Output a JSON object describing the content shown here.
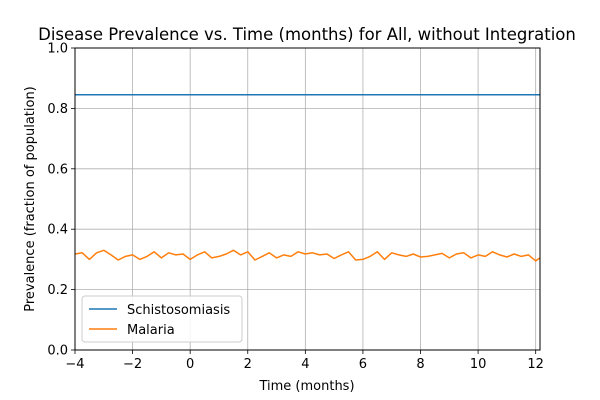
{
  "chart_data": {
    "type": "line",
    "title": "Disease Prevalence vs. Time (months) for All, without Integration",
    "xlabel": "Time (months)",
    "ylabel": "Prevalence (fraction of population)",
    "xlim": [
      -4,
      12.15
    ],
    "ylim": [
      0,
      1
    ],
    "xticks": [
      -4,
      -2,
      0,
      2,
      4,
      6,
      8,
      10,
      12
    ],
    "xtick_labels": [
      "−4",
      "−2",
      "0",
      "2",
      "4",
      "6",
      "8",
      "10",
      "12"
    ],
    "yticks": [
      0,
      0.2,
      0.4,
      0.6,
      0.8,
      1
    ],
    "ytick_labels": [
      "0.0",
      "0.2",
      "0.4",
      "0.6",
      "0.8",
      "1.0"
    ],
    "grid": true,
    "legend_position": "lower-left",
    "series": [
      {
        "name": "Schistosomiasis",
        "color": "#1f77b4",
        "x": [
          -4,
          12.15
        ],
        "y": [
          0.845,
          0.845
        ]
      },
      {
        "name": "Malaria",
        "color": "#ff7f0e",
        "x": [
          -4,
          -3.75,
          -3.5,
          -3.25,
          -3.0,
          -2.75,
          -2.5,
          -2.25,
          -2.0,
          -1.75,
          -1.5,
          -1.25,
          -1.0,
          -0.75,
          -0.5,
          -0.25,
          0.0,
          0.25,
          0.5,
          0.75,
          1.0,
          1.25,
          1.5,
          1.75,
          2.0,
          2.25,
          2.5,
          2.75,
          3.0,
          3.25,
          3.5,
          3.75,
          4.0,
          4.25,
          4.5,
          4.75,
          5.0,
          5.25,
          5.5,
          5.75,
          6.0,
          6.25,
          6.5,
          6.75,
          7.0,
          7.25,
          7.5,
          7.75,
          8.0,
          8.25,
          8.5,
          8.75,
          9.0,
          9.25,
          9.5,
          9.75,
          10.0,
          10.25,
          10.5,
          10.75,
          11.0,
          11.25,
          11.5,
          11.75,
          12.0,
          12.15
        ],
        "y": [
          0.318,
          0.322,
          0.3,
          0.322,
          0.33,
          0.315,
          0.298,
          0.31,
          0.315,
          0.3,
          0.31,
          0.325,
          0.305,
          0.322,
          0.315,
          0.318,
          0.3,
          0.315,
          0.325,
          0.305,
          0.31,
          0.318,
          0.33,
          0.315,
          0.325,
          0.298,
          0.31,
          0.322,
          0.305,
          0.315,
          0.31,
          0.325,
          0.318,
          0.322,
          0.315,
          0.318,
          0.303,
          0.315,
          0.325,
          0.298,
          0.3,
          0.31,
          0.325,
          0.3,
          0.322,
          0.315,
          0.31,
          0.318,
          0.308,
          0.31,
          0.315,
          0.32,
          0.305,
          0.318,
          0.322,
          0.305,
          0.315,
          0.31,
          0.325,
          0.315,
          0.308,
          0.318,
          0.31,
          0.315,
          0.295,
          0.305
        ]
      }
    ]
  }
}
